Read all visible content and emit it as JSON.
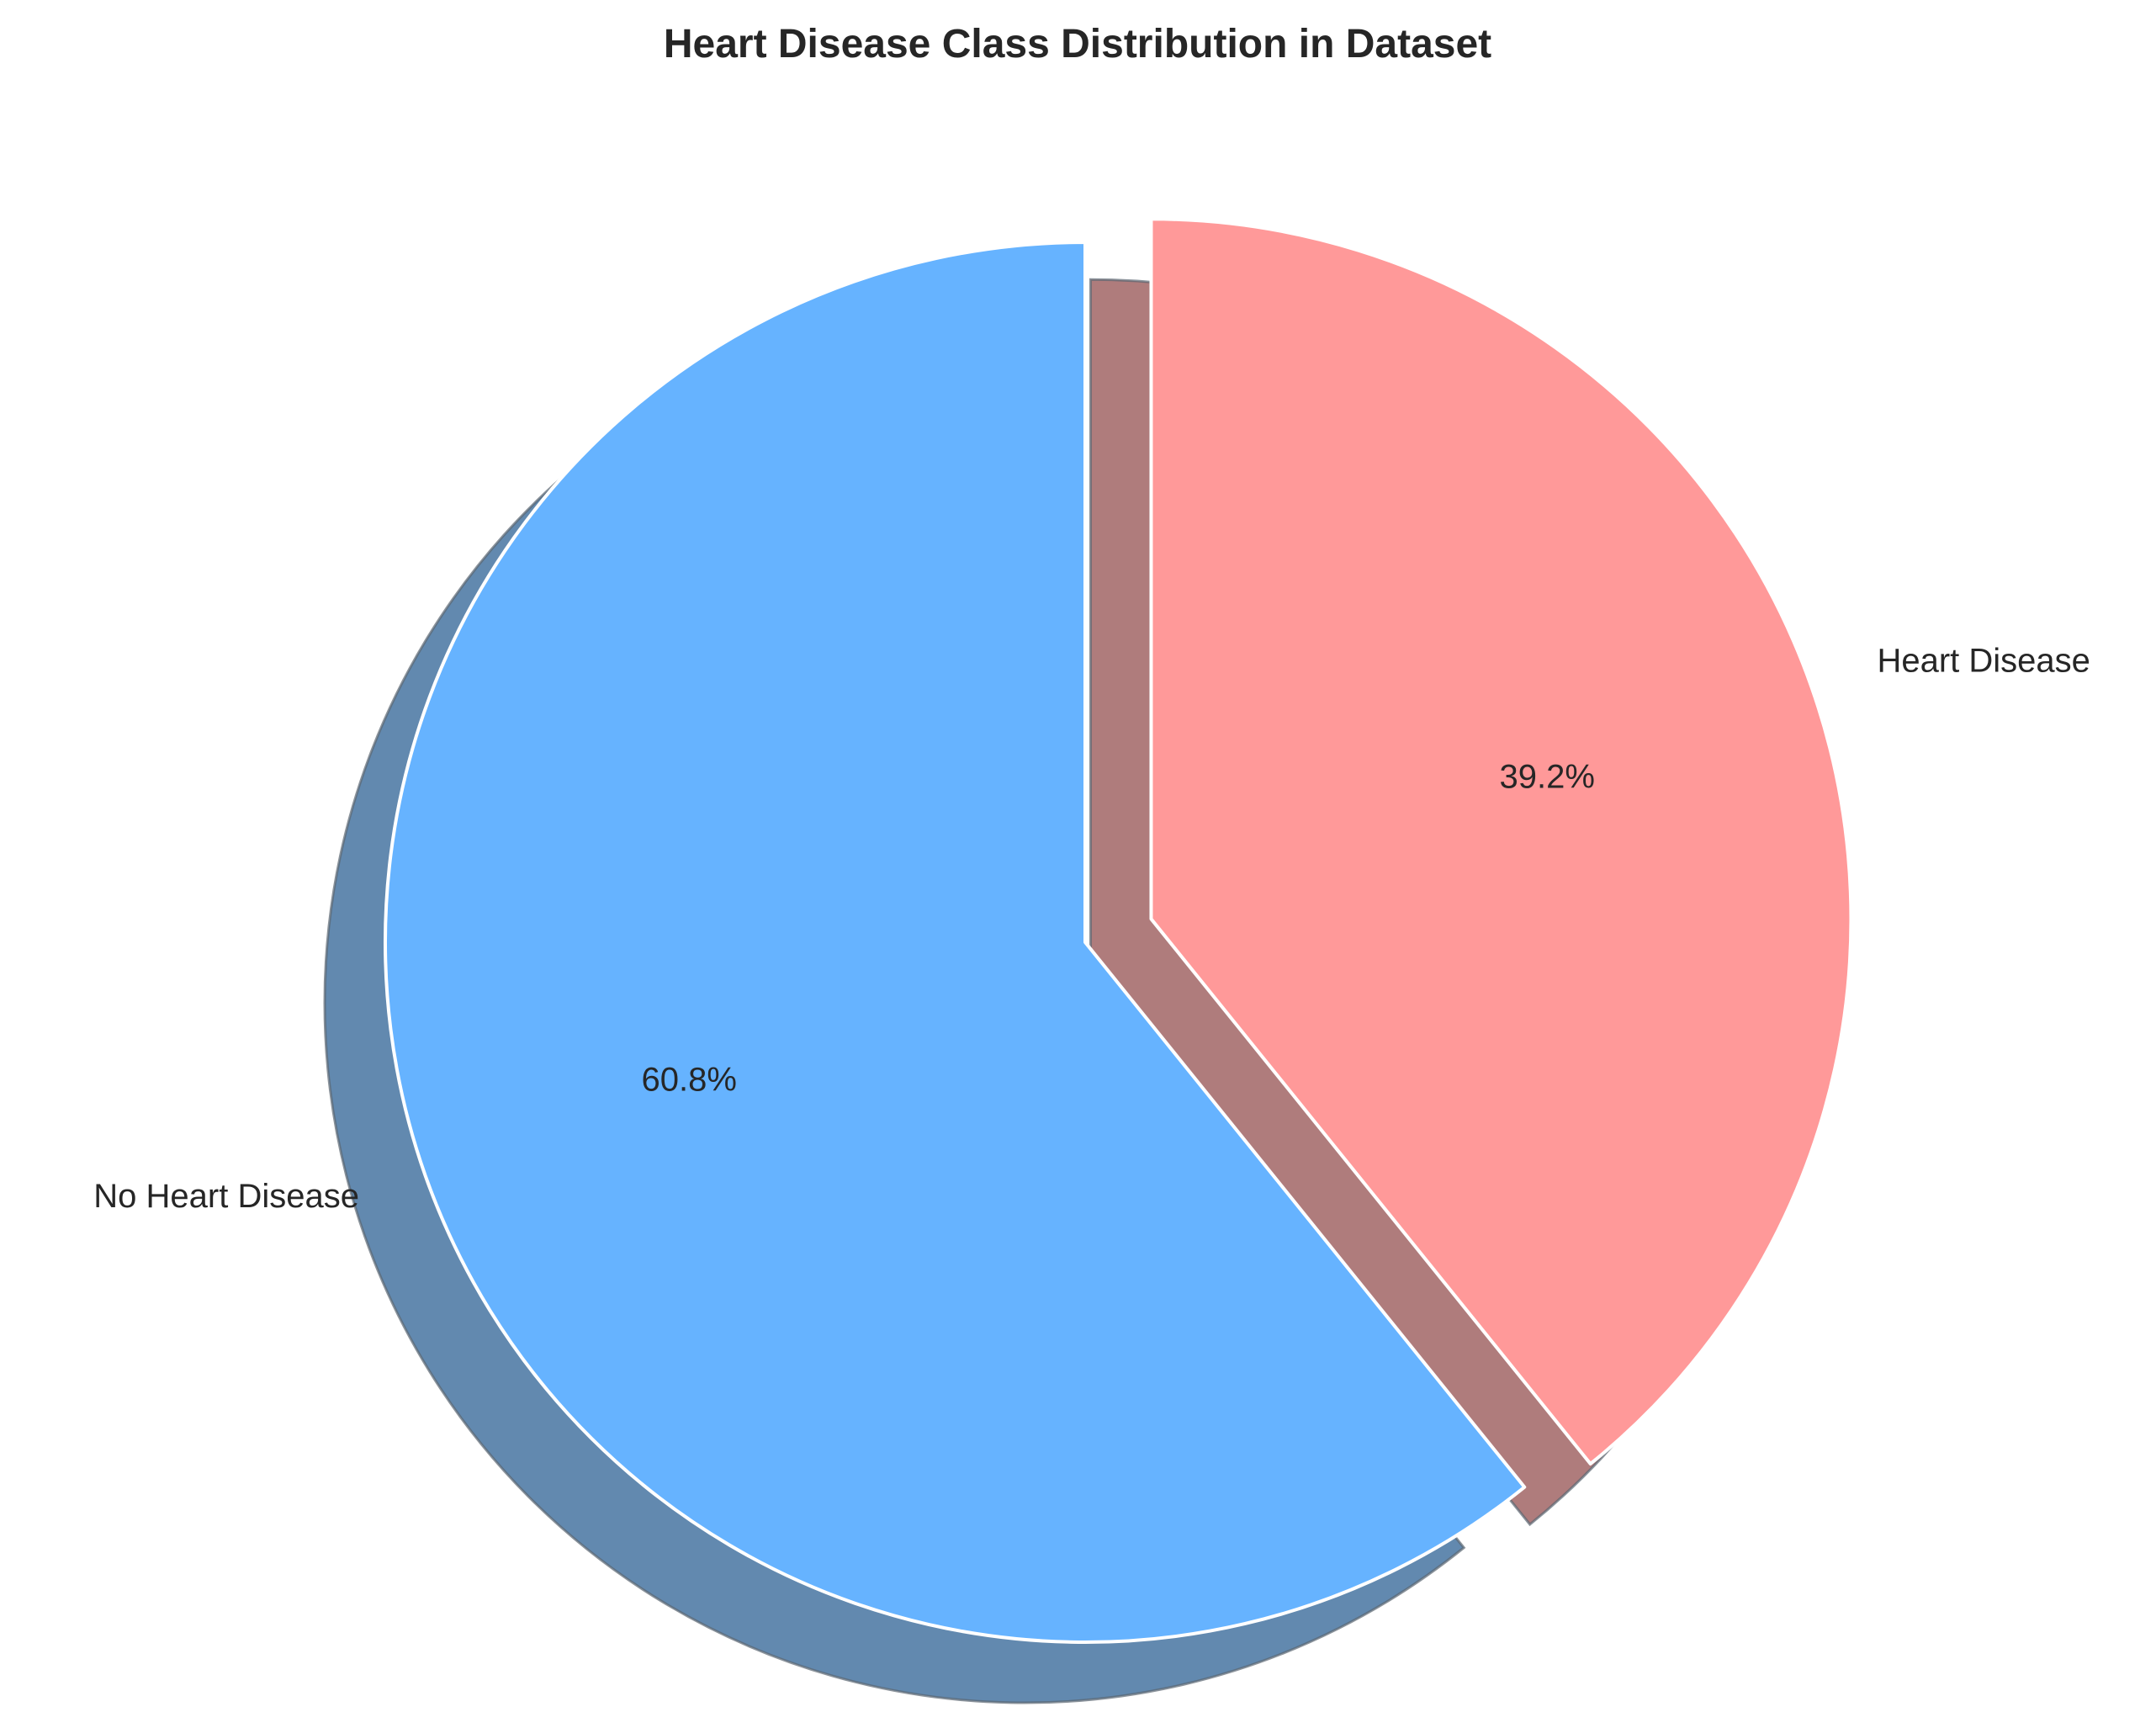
{
  "chart_data": {
    "type": "pie",
    "title": "Heart Disease Class Distribution in Dataset",
    "start_angle_deg": 90,
    "counterclockwise": true,
    "shadow": true,
    "slices": [
      {
        "label": "No Heart Disease",
        "value": 60.8,
        "pct_label": "60.8%",
        "color": "#66b3ff",
        "exploded": false
      },
      {
        "label": "Heart Disease",
        "value": 39.2,
        "pct_label": "39.2%",
        "color": "#ff9999",
        "exploded": true
      }
    ]
  }
}
